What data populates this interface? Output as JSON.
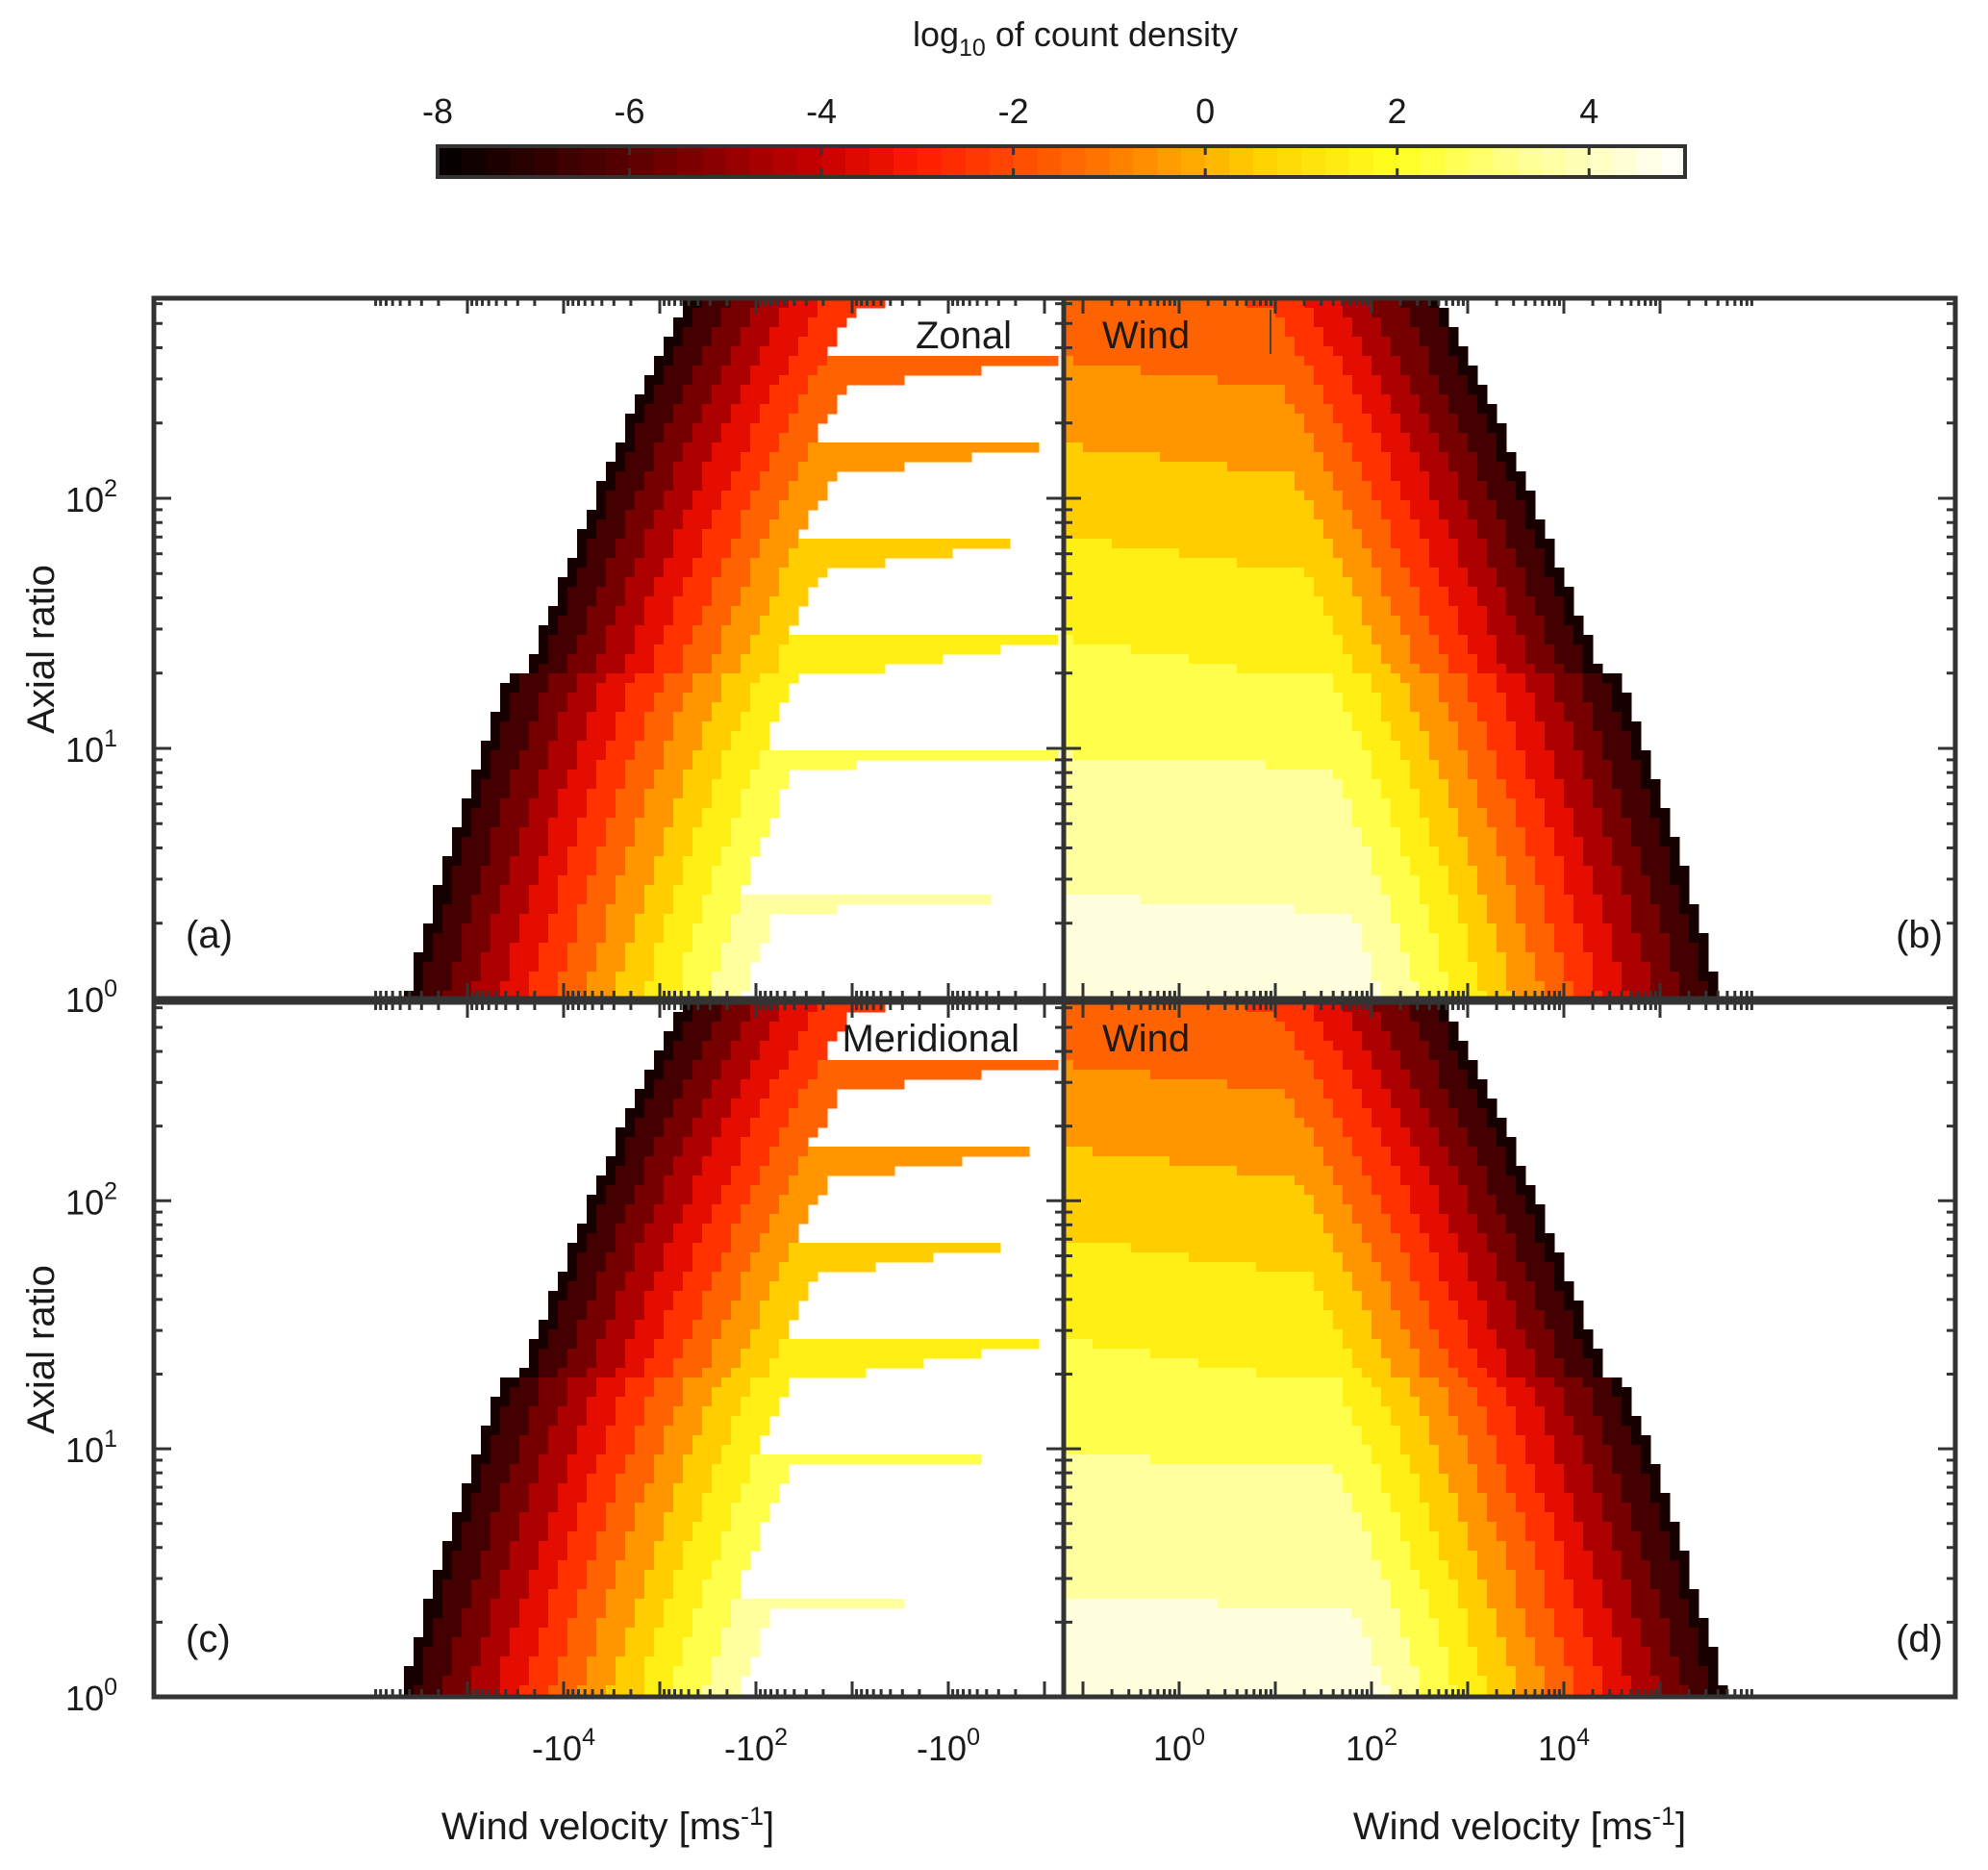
{
  "colorbar": {
    "title_main": "log",
    "title_sub": "10",
    "title_rest": " of count density",
    "range": [
      -8,
      5
    ],
    "ticks": [
      -8,
      -6,
      -4,
      -2,
      0,
      2,
      4
    ],
    "tick_labels": [
      "-8",
      "-6",
      "-4",
      "-2",
      "0",
      "2",
      "4"
    ],
    "stops": [
      {
        "v": -8,
        "color": "#000000"
      },
      {
        "v": -6,
        "color": "#5a0000"
      },
      {
        "v": -4,
        "color": "#c80000"
      },
      {
        "v": -3,
        "color": "#ff1a00"
      },
      {
        "v": -1,
        "color": "#ff7a00"
      },
      {
        "v": 0.6,
        "color": "#ffd200"
      },
      {
        "v": 2,
        "color": "#ffff20"
      },
      {
        "v": 3.3,
        "color": "#ffff90"
      },
      {
        "v": 5,
        "color": "#ffffff"
      }
    ]
  },
  "chart_data": {
    "type": "heatmap",
    "x_axis": {
      "label": "Wind velocity [ms",
      "label_sup": "-1",
      "label_end": "]",
      "scale": "symlog",
      "tick_labels_negative": [
        {
          "base": "-10",
          "exp": "4"
        },
        {
          "base": "-10",
          "exp": "2"
        },
        {
          "base": "-10",
          "exp": "0"
        }
      ],
      "tick_labels_positive": [
        {
          "base": "10",
          "exp": "0"
        },
        {
          "base": "10",
          "exp": "2"
        },
        {
          "base": "10",
          "exp": "4"
        }
      ]
    },
    "y_axis": {
      "label": "Axial ratio",
      "scale": "log",
      "range": [
        1,
        600
      ],
      "tick_labels": [
        {
          "base": "10",
          "exp": "0"
        },
        {
          "base": "10",
          "exp": "1"
        },
        {
          "base": "10",
          "exp": "2"
        }
      ]
    },
    "contour_levels": [
      -7,
      -6,
      -5,
      -4,
      -3,
      -2,
      -1,
      0,
      1,
      2,
      3,
      4
    ],
    "panels": [
      {
        "id": "a",
        "label": "(a)",
        "title": "Zonal",
        "side": "negative"
      },
      {
        "id": "b",
        "label": "(b)",
        "title": "Wind",
        "side": "positive"
      },
      {
        "id": "c",
        "label": "(c)",
        "title": "Meridional",
        "side": "negative"
      },
      {
        "id": "d",
        "label": "(d)",
        "title": "Wind",
        "side": "positive"
      }
    ]
  }
}
